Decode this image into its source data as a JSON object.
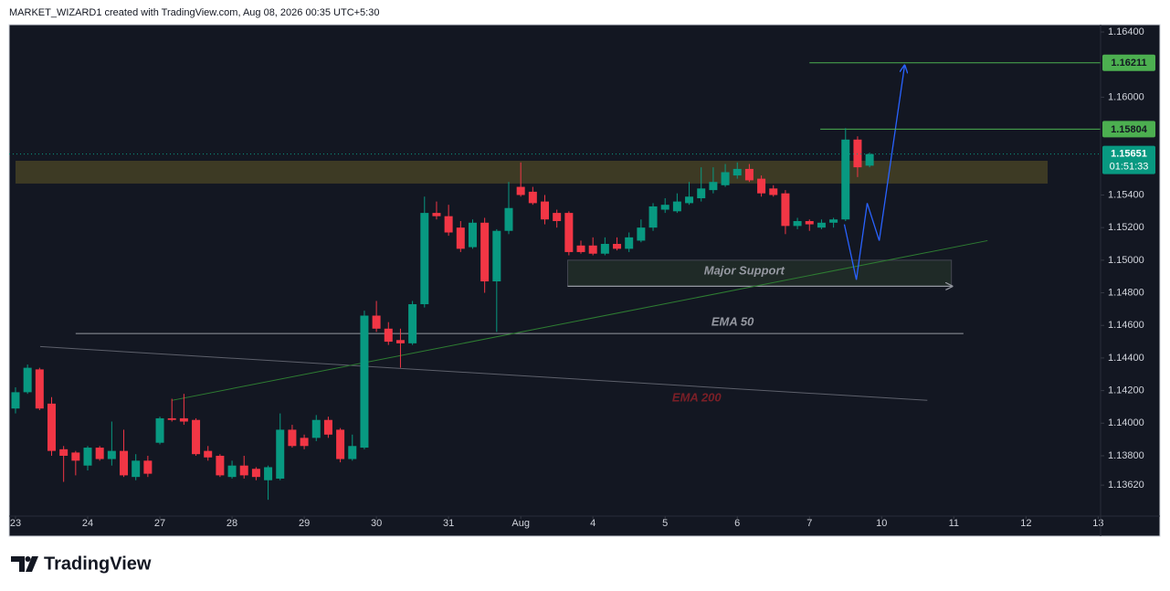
{
  "chart_data": {
    "type": "candlestick",
    "attribution": "MARKET_WIZARD1 created with TradingView.com, Aug 08, 2026 00:35 UTC+5:30",
    "brand": "TradingView",
    "open": [
      1.1409,
      1.1419,
      1.1433,
      1.1412,
      1.1384,
      1.1382,
      1.1374,
      1.1385,
      1.1378,
      1.1383,
      1.1367,
      1.1377,
      1.1388,
      1.1403,
      1.1403,
      1.1402,
      1.1383,
      1.138,
      1.1367,
      1.1374,
      1.1372,
      1.1365,
      1.1366,
      1.1396,
      1.1391,
      1.1391,
      1.1402,
      1.1396,
      1.1378,
      1.1385,
      1.1466,
      1.1458,
      1.1451,
      1.1449,
      1.1473,
      1.1529,
      1.1527,
      1.152,
      1.1508,
      1.1523,
      1.1487,
      1.1518,
      1.1545,
      1.1542,
      1.1536,
      1.1529,
      1.1529,
      1.1509,
      1.1509,
      1.1504,
      1.151,
      1.1507,
      1.1512,
      1.152,
      1.1531,
      1.153,
      1.1535,
      1.1538,
      1.1543,
      1.1546,
      1.1552,
      1.1556,
      1.155,
      1.1544,
      1.1541,
      1.1521,
      1.1524,
      1.152,
      1.1523,
      1.1525,
      1.1574,
      1.1558
    ],
    "high": [
      1.1422,
      1.1436,
      1.1434,
      1.1416,
      1.1386,
      1.1383,
      1.1386,
      1.1386,
      1.1401,
      1.1396,
      1.1381,
      1.138,
      1.1404,
      1.1415,
      1.1418,
      1.1403,
      1.1386,
      1.1381,
      1.1377,
      1.138,
      1.1373,
      1.1374,
      1.1406,
      1.1399,
      1.1393,
      1.1405,
      1.1404,
      1.1397,
      1.1393,
      1.1469,
      1.1475,
      1.1462,
      1.1458,
      1.1475,
      1.1539,
      1.1536,
      1.1534,
      1.1524,
      1.1525,
      1.1526,
      1.1519,
      1.1548,
      1.156,
      1.1545,
      1.154,
      1.1531,
      1.153,
      1.1512,
      1.1514,
      1.1514,
      1.1514,
      1.1517,
      1.1525,
      1.1535,
      1.1538,
      1.1541,
      1.1548,
      1.1557,
      1.1557,
      1.1559,
      1.156,
      1.1559,
      1.1552,
      1.1546,
      1.1543,
      1.1526,
      1.1525,
      1.1525,
      1.1526,
      1.1581,
      1.1576,
      1.1566
    ],
    "low": [
      1.1406,
      1.1418,
      1.1408,
      1.138,
      1.1364,
      1.1368,
      1.1371,
      1.1377,
      1.1374,
      1.1367,
      1.1365,
      1.1367,
      1.1387,
      1.1401,
      1.1399,
      1.138,
      1.1377,
      1.1367,
      1.1366,
      1.1366,
      1.1365,
      1.1353,
      1.1365,
      1.1385,
      1.1384,
      1.1389,
      1.1391,
      1.1376,
      1.1377,
      1.1384,
      1.1456,
      1.1448,
      1.1434,
      1.1448,
      1.1471,
      1.1525,
      1.1515,
      1.1505,
      1.1507,
      1.148,
      1.1456,
      1.1516,
      1.1539,
      1.1534,
      1.1522,
      1.152,
      1.1503,
      1.1504,
      1.1503,
      1.1503,
      1.1506,
      1.1505,
      1.1511,
      1.1518,
      1.1529,
      1.1529,
      1.1534,
      1.1536,
      1.1541,
      1.1545,
      1.155,
      1.1548,
      1.1539,
      1.1539,
      1.1516,
      1.1519,
      1.1518,
      1.1519,
      1.152,
      1.1524,
      1.1551,
      1.1557
    ],
    "close": [
      1.1419,
      1.1434,
      1.1409,
      1.1383,
      1.138,
      1.1377,
      1.1385,
      1.1378,
      1.1383,
      1.1368,
      1.1377,
      1.1369,
      1.1403,
      1.1402,
      1.1401,
      1.1381,
      1.1379,
      1.1368,
      1.1374,
      1.1368,
      1.1367,
      1.1373,
      1.1396,
      1.1386,
      1.1386,
      1.1402,
      1.1393,
      1.1378,
      1.1386,
      1.1466,
      1.1458,
      1.145,
      1.1449,
      1.1473,
      1.1529,
      1.1527,
      1.1517,
      1.1507,
      1.1523,
      1.1487,
      1.1518,
      1.1532,
      1.154,
      1.1535,
      1.1525,
      1.1524,
      1.1505,
      1.1505,
      1.1504,
      1.151,
      1.1507,
      1.1514,
      1.152,
      1.1533,
      1.1534,
      1.1536,
      1.1539,
      1.1544,
      1.1548,
      1.1554,
      1.1556,
      1.1549,
      1.1541,
      1.154,
      1.1521,
      1.1524,
      1.1522,
      1.1523,
      1.1525,
      1.1574,
      1.1557,
      1.15651
    ],
    "up_color": "#089981",
    "down_color": "#f23645",
    "xlim": [
      -0.53,
      90.2
    ],
    "xticks": [
      {
        "value": 0,
        "label": "23"
      },
      {
        "value": 6,
        "label": "24"
      },
      {
        "value": 12,
        "label": "27"
      },
      {
        "value": 18,
        "label": "28"
      },
      {
        "value": 24,
        "label": "29"
      },
      {
        "value": 30,
        "label": "30"
      },
      {
        "value": 36,
        "label": "31"
      },
      {
        "value": 42,
        "label": "Aug"
      },
      {
        "value": 48,
        "label": "4"
      },
      {
        "value": 54,
        "label": "5"
      },
      {
        "value": 60,
        "label": "6"
      },
      {
        "value": 66,
        "label": "7"
      },
      {
        "value": 72,
        "label": "10"
      },
      {
        "value": 78,
        "label": "11"
      },
      {
        "value": 84,
        "label": "12"
      },
      {
        "value": 90,
        "label": "13"
      }
    ],
    "ylim": [
      1.1343,
      1.16445
    ],
    "yticks": [
      {
        "value": 1.164,
        "label": "1.16400"
      },
      {
        "value": 1.16,
        "label": "1.16000"
      },
      {
        "value": 1.154,
        "label": "1.15400"
      },
      {
        "value": 1.152,
        "label": "1.15200"
      },
      {
        "value": 1.15,
        "label": "1.15000"
      },
      {
        "value": 1.148,
        "label": "1.14800"
      },
      {
        "value": 1.146,
        "label": "1.14600"
      },
      {
        "value": 1.144,
        "label": "1.14400"
      },
      {
        "value": 1.142,
        "label": "1.14200"
      },
      {
        "value": 1.14,
        "label": "1.14000"
      },
      {
        "value": 1.138,
        "label": "1.13800"
      },
      {
        "value": 1.1362,
        "label": "1.13620"
      }
    ],
    "grid": false,
    "last_price": 1.15651,
    "countdown": "01:51:33",
    "levels": [
      {
        "price": 1.16211,
        "start": 66.0,
        "color": "#4caf50"
      },
      {
        "price": 1.15804,
        "start": 66.9,
        "color": "#4caf50"
      }
    ],
    "zones": [
      {
        "start": 0,
        "end": 85.8,
        "bottom": 1.1547,
        "top": 1.1561,
        "color": "#3d3a24"
      },
      {
        "label": "Major Support",
        "start": 45.9,
        "end": 77.8,
        "bottom": 1.1484,
        "top": 1.15,
        "color": "#1f2a27"
      }
    ],
    "lines": [
      {
        "label": "EMA 50",
        "x": [
          5.0,
          78.8
        ],
        "y": [
          1.1455,
          1.1455
        ],
        "color": "#9598a1",
        "label_color": "#9598a1"
      },
      {
        "label": "EMA 200",
        "x": [
          2.05,
          75.8
        ],
        "y": [
          1.1447,
          1.1414
        ],
        "color": "#5d606b",
        "label_color": "#7b1f27"
      },
      {
        "x": [
          13.0,
          80.8
        ],
        "y": [
          1.1414,
          1.1512
        ],
        "color": "#2e7d32"
      },
      {
        "x": [
          68.9,
          69.9,
          70.8,
          71.8,
          73.9
        ],
        "y": [
          1.1522,
          1.1488,
          1.1535,
          1.1512,
          1.1619
        ],
        "color": "#2962ff",
        "arrow": true
      }
    ]
  }
}
